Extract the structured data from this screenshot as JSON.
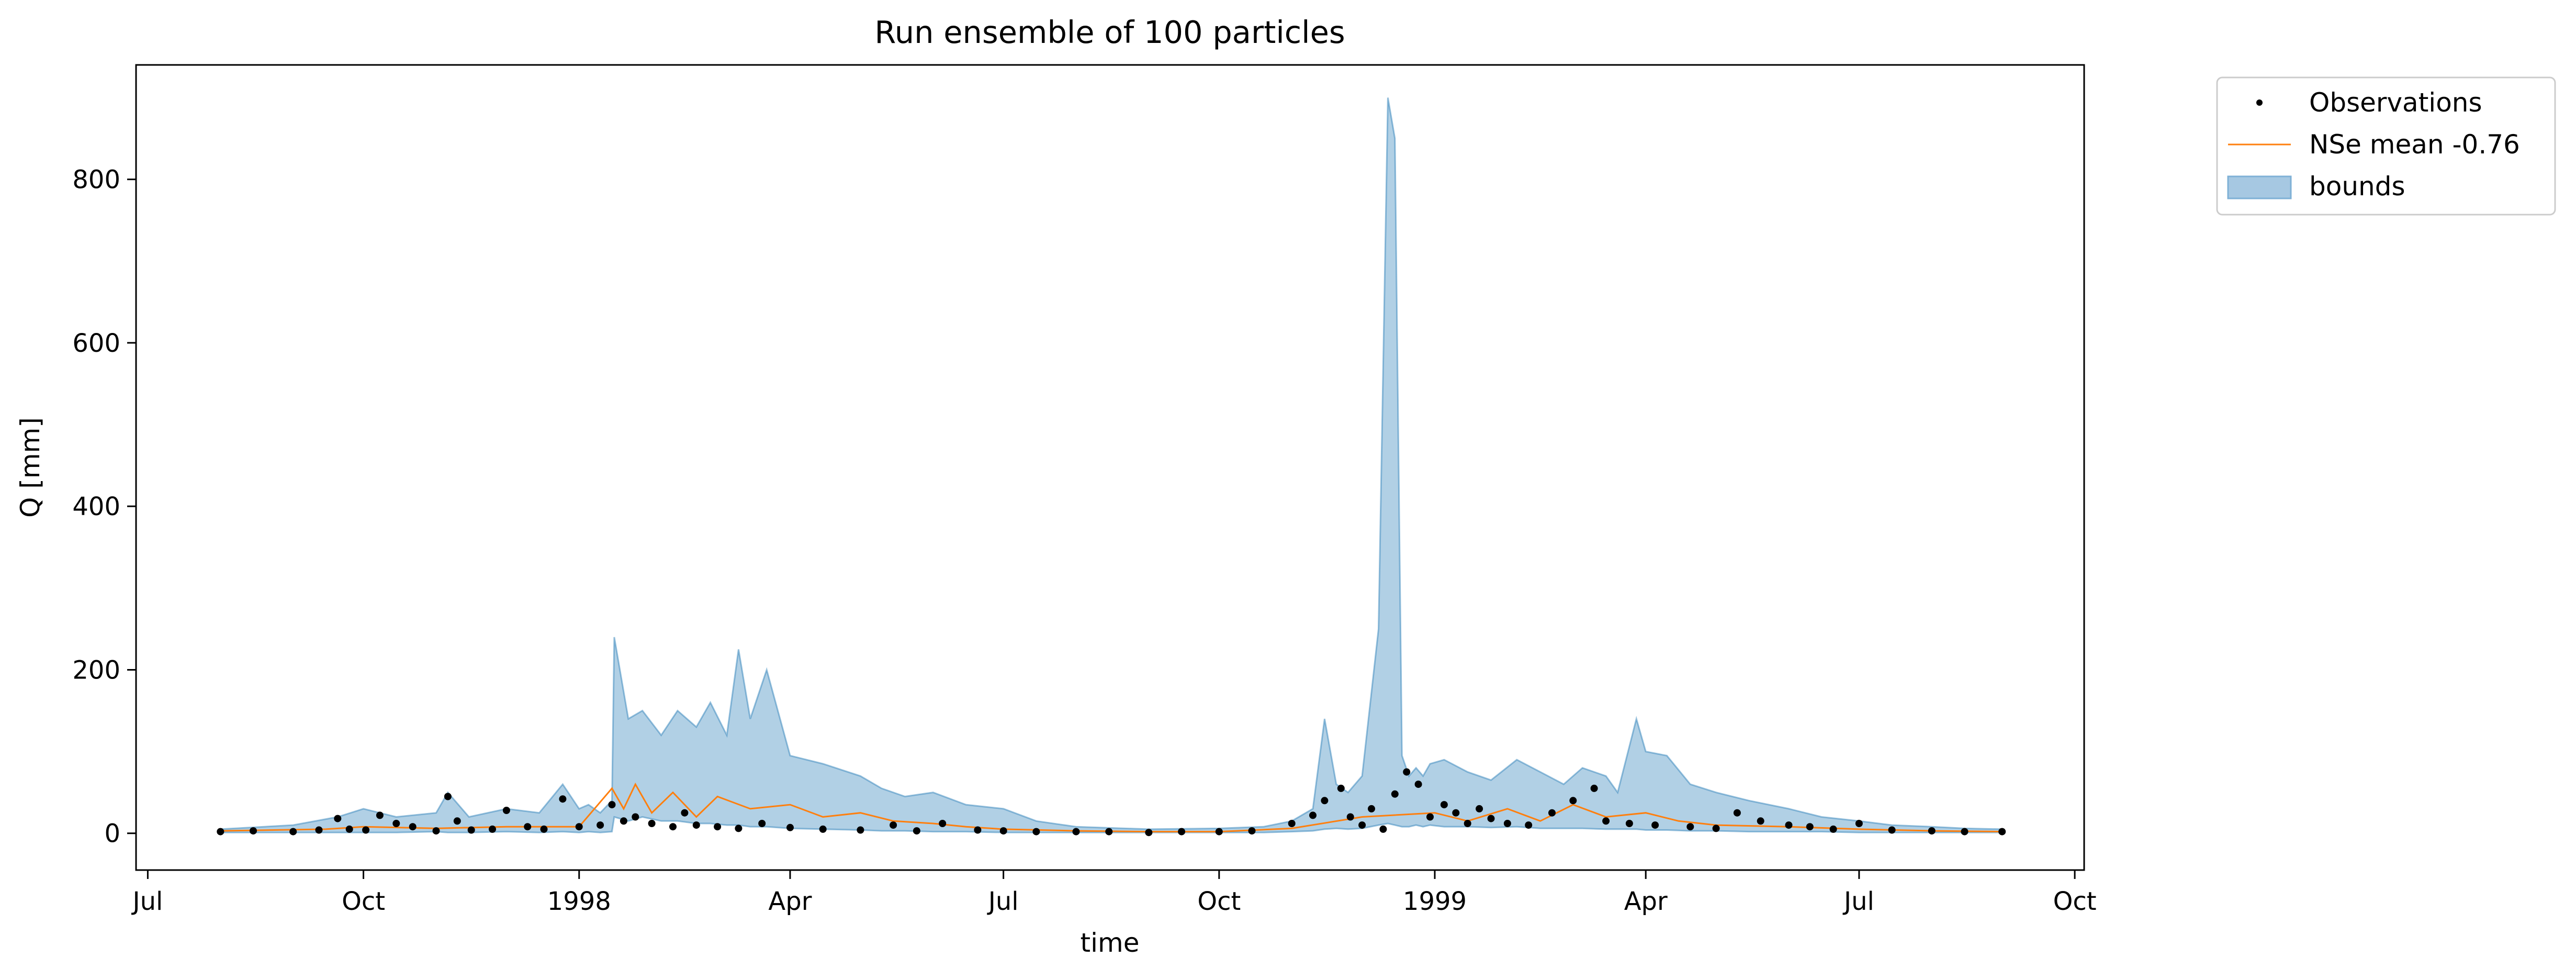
{
  "chart_data": {
    "type": "line",
    "title": "Run ensemble of 100 particles",
    "xlabel": "time",
    "ylabel": "Q [mm]",
    "x_range": [
      "1997-06-26",
      "1999-10-05"
    ],
    "ylim": [
      -45,
      940
    ],
    "grid": false,
    "legend_position": "outside-top-right",
    "x_ticks": [
      {
        "date": "1997-07-01",
        "label": "Jul"
      },
      {
        "date": "1997-10-01",
        "label": "Oct"
      },
      {
        "date": "1998-01-01",
        "label": "1998"
      },
      {
        "date": "1998-04-01",
        "label": "Apr"
      },
      {
        "date": "1998-07-01",
        "label": "Jul"
      },
      {
        "date": "1998-10-01",
        "label": "Oct"
      },
      {
        "date": "1999-01-01",
        "label": "1999"
      },
      {
        "date": "1999-04-01",
        "label": "Apr"
      },
      {
        "date": "1999-07-01",
        "label": "Jul"
      },
      {
        "date": "1999-10-01",
        "label": "Oct"
      }
    ],
    "y_ticks": [
      0,
      200,
      400,
      600,
      800
    ],
    "series": [
      {
        "name": "Observations",
        "kind": "markers",
        "color": "#000000",
        "x": [
          "1997-08-01",
          "1997-08-15",
          "1997-09-01",
          "1997-09-12",
          "1997-09-20",
          "1997-09-25",
          "1997-10-02",
          "1997-10-08",
          "1997-10-15",
          "1997-10-22",
          "1997-11-01",
          "1997-11-06",
          "1997-11-10",
          "1997-11-16",
          "1997-11-25",
          "1997-12-01",
          "1997-12-10",
          "1997-12-17",
          "1997-12-25",
          "1998-01-01",
          "1998-01-10",
          "1998-01-15",
          "1998-01-20",
          "1998-01-25",
          "1998-02-01",
          "1998-02-10",
          "1998-02-15",
          "1998-02-20",
          "1998-03-01",
          "1998-03-10",
          "1998-03-20",
          "1998-04-01",
          "1998-04-15",
          "1998-05-01",
          "1998-05-15",
          "1998-05-25",
          "1998-06-05",
          "1998-06-20",
          "1998-07-01",
          "1998-07-15",
          "1998-08-01",
          "1998-08-15",
          "1998-09-01",
          "1998-09-15",
          "1998-10-01",
          "1998-10-15",
          "1998-11-01",
          "1998-11-10",
          "1998-11-15",
          "1998-11-22",
          "1998-11-26",
          "1998-12-01",
          "1998-12-05",
          "1998-12-10",
          "1998-12-15",
          "1998-12-20",
          "1998-12-25",
          "1998-12-30",
          "1999-01-05",
          "1999-01-10",
          "1999-01-15",
          "1999-01-20",
          "1999-01-25",
          "1999-02-01",
          "1999-02-10",
          "1999-02-20",
          "1999-03-01",
          "1999-03-10",
          "1999-03-15",
          "1999-03-25",
          "1999-04-05",
          "1999-04-20",
          "1999-05-01",
          "1999-05-10",
          "1999-05-20",
          "1999-06-01",
          "1999-06-10",
          "1999-06-20",
          "1999-07-01",
          "1999-07-15",
          "1999-08-01",
          "1999-08-15",
          "1999-08-31"
        ],
        "values": [
          2,
          3,
          2,
          4,
          18,
          5,
          4,
          22,
          12,
          8,
          3,
          45,
          15,
          4,
          5,
          28,
          8,
          5,
          42,
          8,
          10,
          35,
          15,
          20,
          12,
          8,
          25,
          10,
          8,
          6,
          12,
          7,
          5,
          4,
          10,
          3,
          12,
          4,
          3,
          2,
          2,
          2,
          1,
          2,
          2,
          3,
          12,
          22,
          40,
          55,
          20,
          10,
          30,
          5,
          48,
          75,
          60,
          20,
          35,
          25,
          12,
          30,
          18,
          12,
          10,
          25,
          40,
          55,
          15,
          12,
          10,
          8,
          6,
          25,
          15,
          10,
          8,
          5,
          12,
          4,
          3,
          2,
          2
        ]
      },
      {
        "name": "NSe mean -0.76",
        "kind": "line",
        "color": "#ff7f0e",
        "x": [
          "1997-08-01",
          "1997-09-15",
          "1997-10-01",
          "1997-11-01",
          "1997-12-01",
          "1998-01-01",
          "1998-01-15",
          "1998-01-20",
          "1998-01-25",
          "1998-02-01",
          "1998-02-10",
          "1998-02-20",
          "1998-03-01",
          "1998-03-15",
          "1998-04-01",
          "1998-04-15",
          "1998-05-01",
          "1998-05-15",
          "1998-06-01",
          "1998-06-15",
          "1998-07-01",
          "1998-08-01",
          "1998-09-01",
          "1998-10-01",
          "1998-11-01",
          "1998-12-01",
          "1999-01-01",
          "1999-01-15",
          "1999-02-01",
          "1999-02-15",
          "1999-03-01",
          "1999-03-15",
          "1999-04-01",
          "1999-04-15",
          "1999-05-01",
          "1999-06-01",
          "1999-07-01",
          "1999-08-01",
          "1999-08-31"
        ],
        "values": [
          3,
          5,
          8,
          6,
          8,
          8,
          55,
          30,
          60,
          25,
          50,
          20,
          45,
          30,
          35,
          20,
          25,
          15,
          12,
          8,
          5,
          3,
          2,
          2,
          6,
          20,
          25,
          15,
          30,
          15,
          35,
          20,
          25,
          15,
          10,
          8,
          5,
          3,
          2
        ]
      },
      {
        "name": "bounds",
        "kind": "band",
        "color": "#1f77b4",
        "x": [
          "1997-08-01",
          "1997-09-01",
          "1997-09-20",
          "1997-10-01",
          "1997-10-15",
          "1997-11-01",
          "1997-11-06",
          "1997-11-15",
          "1997-12-01",
          "1997-12-15",
          "1997-12-25",
          "1998-01-01",
          "1998-01-05",
          "1998-01-10",
          "1998-01-15",
          "1998-01-16",
          "1998-01-22",
          "1998-01-28",
          "1998-02-05",
          "1998-02-12",
          "1998-02-20",
          "1998-02-26",
          "1998-03-05",
          "1998-03-10",
          "1998-03-15",
          "1998-03-22",
          "1998-04-01",
          "1998-04-15",
          "1998-05-01",
          "1998-05-10",
          "1998-05-20",
          "1998-06-01",
          "1998-06-15",
          "1998-07-01",
          "1998-07-15",
          "1998-08-01",
          "1998-09-01",
          "1998-10-01",
          "1998-10-20",
          "1998-11-01",
          "1998-11-10",
          "1998-11-15",
          "1998-11-20",
          "1998-11-25",
          "1998-12-01",
          "1998-12-08",
          "1998-12-12",
          "1998-12-15",
          "1998-12-18",
          "1998-12-21",
          "1998-12-24",
          "1998-12-27",
          "1998-12-30",
          "1999-01-05",
          "1999-01-15",
          "1999-01-25",
          "1999-02-05",
          "1999-02-15",
          "1999-02-25",
          "1999-03-05",
          "1999-03-15",
          "1999-03-20",
          "1999-03-28",
          "1999-04-01",
          "1999-04-10",
          "1999-04-20",
          "1999-05-01",
          "1999-05-15",
          "1999-06-01",
          "1999-06-15",
          "1999-07-01",
          "1999-07-15",
          "1999-08-01",
          "1999-08-15",
          "1999-08-31"
        ],
        "upper": [
          5,
          10,
          20,
          30,
          20,
          25,
          50,
          20,
          30,
          25,
          60,
          30,
          35,
          25,
          40,
          240,
          140,
          150,
          120,
          150,
          130,
          160,
          120,
          225,
          140,
          200,
          95,
          85,
          70,
          55,
          45,
          50,
          35,
          30,
          15,
          8,
          5,
          6,
          8,
          15,
          30,
          140,
          60,
          50,
          70,
          250,
          900,
          850,
          95,
          70,
          80,
          70,
          85,
          90,
          75,
          65,
          90,
          75,
          60,
          80,
          70,
          50,
          140,
          100,
          95,
          60,
          50,
          40,
          30,
          20,
          15,
          10,
          8,
          6,
          5
        ],
        "lower": [
          1,
          1,
          1,
          1,
          1,
          2,
          1,
          1,
          2,
          1,
          2,
          1,
          2,
          1,
          2,
          20,
          15,
          20,
          15,
          15,
          12,
          12,
          10,
          10,
          8,
          8,
          6,
          5,
          4,
          3,
          3,
          2,
          2,
          1,
          1,
          1,
          1,
          1,
          1,
          2,
          3,
          5,
          6,
          5,
          6,
          10,
          12,
          10,
          8,
          8,
          10,
          8,
          10,
          8,
          8,
          7,
          8,
          6,
          6,
          6,
          5,
          5,
          5,
          4,
          4,
          3,
          3,
          2,
          2,
          2,
          1,
          1,
          1,
          1,
          1
        ]
      }
    ]
  }
}
